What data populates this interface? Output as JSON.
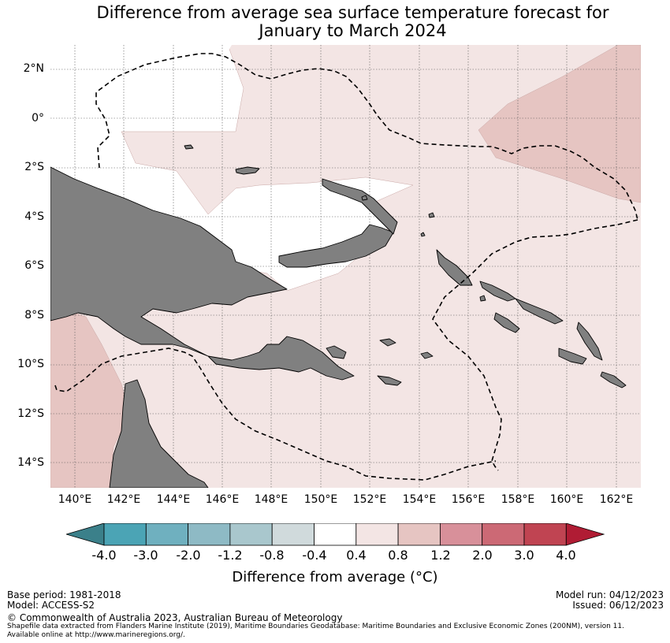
{
  "title": {
    "line1": "Difference from average sea surface temperature forecast for",
    "line2": "January to March 2024"
  },
  "map": {
    "lat_labels": [
      "2°N",
      "0°",
      "2°S",
      "4°S",
      "6°S",
      "8°S",
      "10°S",
      "12°S",
      "14°S"
    ],
    "lon_labels": [
      "140°E",
      "142°E",
      "144°E",
      "146°E",
      "148°E",
      "150°E",
      "152°E",
      "154°E",
      "156°E",
      "158°E",
      "160°E",
      "162°E"
    ],
    "colors": {
      "land": "#808080",
      "anom_04_08": "#f3e5e4",
      "anom_08_12": "#e6c5c2",
      "ocean_neutral": "#ffffff"
    }
  },
  "colorbar": {
    "ticks": [
      "-4.0",
      "-3.0",
      "-2.0",
      "-1.2",
      "-0.8",
      "-0.4",
      "0.4",
      "0.8",
      "1.2",
      "2.0",
      "3.0",
      "4.0"
    ],
    "colors": [
      "#3b808a",
      "#4ba4b5",
      "#6fb0bf",
      "#8ebac5",
      "#a9c7cd",
      "#d0dadc",
      "#ffffff",
      "#f3e5e4",
      "#e6c5c2",
      "#d8909a",
      "#cc6975",
      "#c04452",
      "#b01c34"
    ],
    "label": "Difference from average ($^\\circ$C)",
    "label_display": "Difference from average (°C)"
  },
  "footer": {
    "base_period": "Base period: 1981-2018",
    "model": "Model: ACCESS-S2",
    "model_run": "Model run: 04/12/2023",
    "issued": "Issued: 06/12/2023",
    "copyright": "© Commonwealth of Australia 2023, Australian Bureau of Meteorology",
    "shapefile_line1": "Shapefile data extracted from Flanders Marine Institute (2019), Maritime Boundaries Geodatabase: Maritime Boundaries and Exclusive Economic Zones (200NM), version 11.",
    "shapefile_line2": "Available online at http://www.marineregions.org/."
  }
}
